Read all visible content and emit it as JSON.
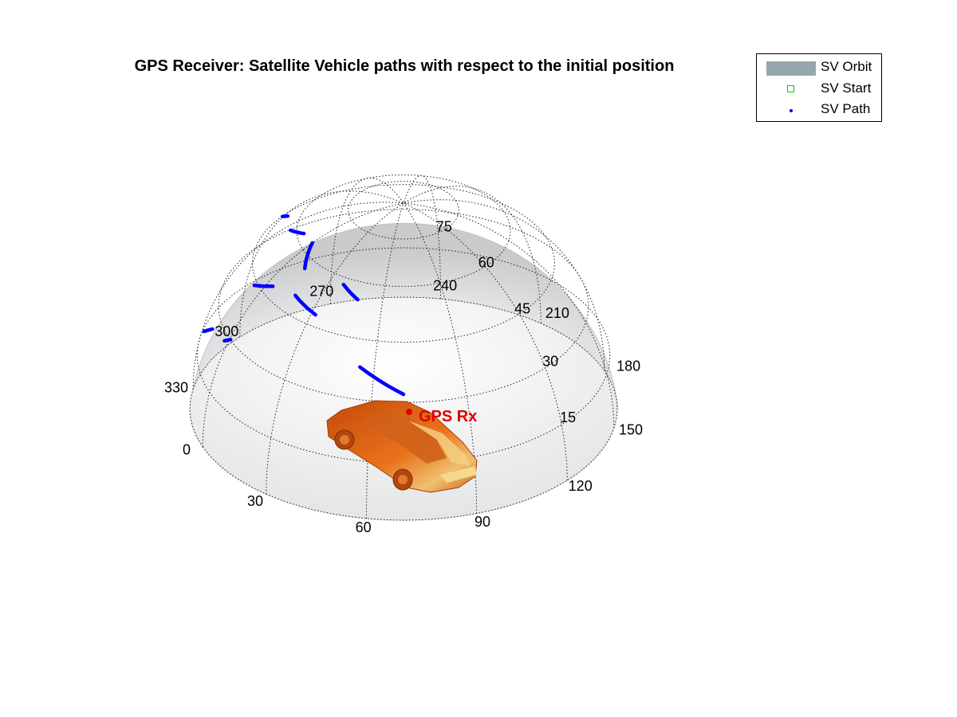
{
  "chart_data": {
    "type": "skyplot-3d",
    "title": "GPS Receiver: Satellite Vehicle paths with respect to the initial position",
    "azimuth_ticks": [
      "0",
      "30",
      "60",
      "90",
      "120",
      "150",
      "180",
      "210",
      "240",
      "270",
      "300",
      "330"
    ],
    "elevation_ticks": [
      "15",
      "30",
      "45",
      "60",
      "75"
    ],
    "receiver_label": "GPS Rx",
    "legend": {
      "placement": "top-right",
      "entries": [
        {
          "label": "SV Orbit",
          "marker": "patch",
          "color": "#97a6ae"
        },
        {
          "label": "SV Start",
          "marker": "square",
          "color": "#00cc00"
        },
        {
          "label": "SV Path",
          "marker": "dot",
          "color": "#0000ff"
        }
      ]
    },
    "colors": {
      "path": "#0000ff",
      "vehicle": "#e05a10",
      "receiver": "#e00000",
      "dome": "#d8dadb"
    },
    "sv_paths": [
      {
        "az": [
          0,
          12
        ],
        "el": [
          63,
          57
        ]
      },
      {
        "az": [
          18,
          32
        ],
        "el": [
          50,
          48
        ]
      },
      {
        "az": [
          38,
          48
        ],
        "el": [
          58,
          55
        ]
      },
      {
        "az": [
          55,
          70
        ],
        "el": [
          38,
          32
        ]
      },
      {
        "az": [
          295,
          302
        ],
        "el": [
          40,
          44
        ]
      },
      {
        "az": [
          336,
          347
        ],
        "el": [
          58,
          62
        ]
      },
      {
        "az": [
          354,
          4
        ],
        "el": [
          44,
          48
        ]
      },
      {
        "az": [
          338,
          346
        ],
        "el": [
          21,
          26
        ]
      },
      {
        "az": [
          304,
          307
        ],
        "el": [
          1,
          2
        ]
      }
    ]
  }
}
